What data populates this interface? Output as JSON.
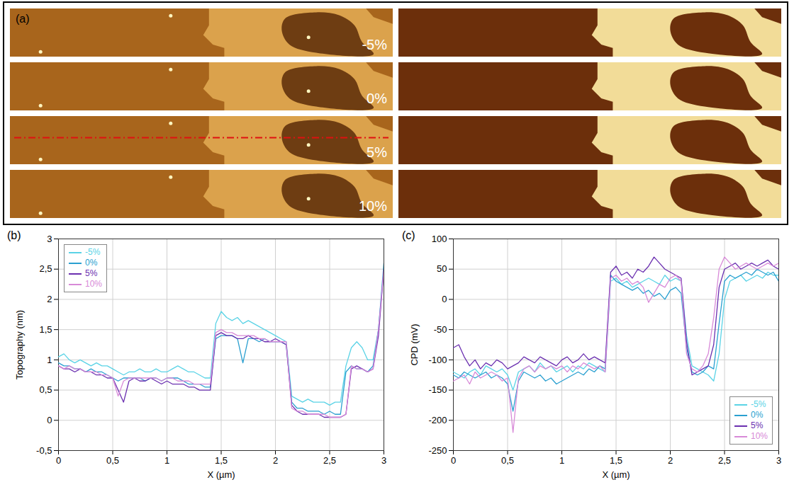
{
  "panel_a": {
    "label": "(a)",
    "image_labels": [
      "-5%",
      "0%",
      "5%",
      "10%"
    ]
  },
  "chart_data": [
    {
      "type": "line",
      "panel_label": "(b)",
      "x_label": "X (µm)",
      "y_label": "Topography (nm)",
      "xlim": [
        0,
        3
      ],
      "xticks": [
        0,
        {
          "value": 0.5,
          "label": "0,5"
        },
        1,
        {
          "value": 1.5,
          "label": "1,5"
        },
        2,
        {
          "value": 2.5,
          "label": "2,5"
        },
        3
      ],
      "ylim": [
        -0.5,
        3
      ],
      "yticks": [
        {
          "value": -0.5,
          "label": "-0,5"
        },
        0,
        {
          "value": 0.5,
          "label": "0,5"
        },
        1,
        {
          "value": 1.5,
          "label": "1,5"
        },
        2,
        {
          "value": 2.5,
          "label": "2,5"
        },
        3
      ],
      "grid": true,
      "legend": "top-left",
      "x": [
        0,
        0.05,
        0.1,
        0.15,
        0.2,
        0.25,
        0.3,
        0.35,
        0.4,
        0.45,
        0.5,
        0.55,
        0.6,
        0.65,
        0.7,
        0.75,
        0.8,
        0.85,
        0.9,
        0.95,
        1,
        1.05,
        1.1,
        1.15,
        1.2,
        1.25,
        1.3,
        1.35,
        1.4,
        1.45,
        1.5,
        1.55,
        1.6,
        1.65,
        1.7,
        1.75,
        1.8,
        1.85,
        1.9,
        1.95,
        2,
        2.05,
        2.1,
        2.15,
        2.2,
        2.25,
        2.3,
        2.35,
        2.4,
        2.45,
        2.5,
        2.55,
        2.6,
        2.65,
        2.7,
        2.75,
        2.8,
        2.85,
        2.9,
        2.95,
        3
      ],
      "series": [
        {
          "name": "-5%",
          "color": "#5ad3e6",
          "values": [
            1.05,
            1.1,
            1.0,
            0.95,
            1.0,
            0.95,
            0.9,
            0.95,
            0.9,
            0.9,
            0.85,
            0.8,
            0.75,
            0.8,
            0.8,
            0.85,
            0.8,
            0.8,
            0.85,
            0.8,
            0.8,
            0.85,
            0.9,
            0.85,
            0.8,
            0.8,
            0.75,
            0.7,
            0.7,
            1.6,
            1.8,
            1.7,
            1.65,
            1.7,
            1.6,
            1.65,
            1.6,
            1.55,
            1.5,
            1.45,
            1.4,
            1.35,
            1.3,
            0.4,
            0.35,
            0.3,
            0.35,
            0.3,
            0.3,
            0.3,
            0.25,
            0.3,
            0.3,
            0.9,
            1.2,
            1.3,
            1.2,
            1.0,
            1.0,
            1.5,
            2.5
          ]
        },
        {
          "name": "0%",
          "color": "#2a9fd0",
          "values": [
            0.95,
            0.9,
            0.9,
            0.85,
            0.85,
            0.8,
            0.85,
            0.8,
            0.8,
            0.75,
            0.7,
            0.65,
            0.7,
            0.7,
            0.7,
            0.7,
            0.65,
            0.7,
            0.7,
            0.65,
            0.7,
            0.7,
            0.7,
            0.65,
            0.6,
            0.6,
            0.6,
            0.55,
            0.55,
            1.35,
            1.4,
            1.4,
            1.4,
            1.35,
            0.95,
            1.35,
            1.35,
            1.3,
            1.35,
            1.3,
            1.3,
            1.3,
            1.25,
            0.3,
            0.2,
            0.2,
            0.15,
            0.15,
            0.15,
            0.1,
            0.15,
            0.1,
            0.1,
            0.8,
            0.9,
            0.85,
            0.85,
            0.8,
            0.9,
            1.5,
            2.6
          ]
        },
        {
          "name": "5%",
          "color": "#6b30b0",
          "values": [
            0.9,
            0.85,
            0.85,
            0.8,
            0.85,
            0.8,
            0.8,
            0.75,
            0.75,
            0.7,
            0.7,
            0.5,
            0.3,
            0.65,
            0.7,
            0.65,
            0.65,
            0.7,
            0.65,
            0.6,
            0.65,
            0.6,
            0.6,
            0.6,
            0.55,
            0.55,
            0.5,
            0.5,
            0.5,
            1.4,
            1.45,
            1.4,
            1.4,
            1.35,
            1.35,
            1.4,
            1.35,
            1.35,
            1.3,
            1.3,
            1.35,
            1.3,
            1.25,
            0.25,
            0.15,
            0.1,
            0.1,
            0.1,
            0.1,
            0.05,
            0.05,
            0.05,
            0.05,
            0.1,
            0.85,
            0.9,
            0.85,
            0.8,
            0.85,
            1.4,
            2.5
          ]
        },
        {
          "name": "10%",
          "color": "#d88ad8",
          "values": [
            0.9,
            0.85,
            0.9,
            0.85,
            0.85,
            0.8,
            0.8,
            0.8,
            0.75,
            0.75,
            0.7,
            0.4,
            0.65,
            0.7,
            0.7,
            0.7,
            0.7,
            0.7,
            0.7,
            0.65,
            0.7,
            0.7,
            0.65,
            0.65,
            0.65,
            0.6,
            0.6,
            0.6,
            0.6,
            1.45,
            1.5,
            1.45,
            1.45,
            1.4,
            1.4,
            1.4,
            1.4,
            1.35,
            1.35,
            1.3,
            1.3,
            1.3,
            1.3,
            0.2,
            0.15,
            0.15,
            0.1,
            0.1,
            0.1,
            0.1,
            0.05,
            0.05,
            0.05,
            0.1,
            0.9,
            0.85,
            0.85,
            0.8,
            0.85,
            1.5,
            2.5
          ]
        }
      ]
    },
    {
      "type": "line",
      "panel_label": "(c)",
      "x_label": "X (µm)",
      "y_label": "CPD (mV)",
      "xlim": [
        0,
        3
      ],
      "xticks": [
        0,
        {
          "value": 0.5,
          "label": "0,5"
        },
        1,
        {
          "value": 1.5,
          "label": "1,5"
        },
        2,
        {
          "value": 2.5,
          "label": "2,5"
        },
        3
      ],
      "ylim": [
        -250,
        100
      ],
      "yticks": [
        -250,
        -200,
        -150,
        -100,
        -50,
        0,
        50,
        100
      ],
      "grid": true,
      "legend": "bottom-right",
      "x": [
        0,
        0.05,
        0.1,
        0.15,
        0.2,
        0.25,
        0.3,
        0.35,
        0.4,
        0.45,
        0.5,
        0.55,
        0.6,
        0.65,
        0.7,
        0.75,
        0.8,
        0.85,
        0.9,
        0.95,
        1,
        1.05,
        1.1,
        1.15,
        1.2,
        1.25,
        1.3,
        1.35,
        1.4,
        1.45,
        1.5,
        1.55,
        1.6,
        1.65,
        1.7,
        1.75,
        1.8,
        1.85,
        1.9,
        1.95,
        2,
        2.05,
        2.1,
        2.15,
        2.2,
        2.25,
        2.3,
        2.35,
        2.4,
        2.45,
        2.5,
        2.55,
        2.6,
        2.65,
        2.7,
        2.75,
        2.8,
        2.85,
        2.9,
        2.95,
        3
      ],
      "series": [
        {
          "name": "-5%",
          "color": "#5ad3e6",
          "values": [
            -120,
            -125,
            -130,
            -120,
            -115,
            -125,
            -110,
            -115,
            -120,
            -115,
            -125,
            -150,
            -120,
            -115,
            -110,
            -120,
            -105,
            -115,
            -110,
            -120,
            -115,
            -110,
            -120,
            -110,
            -115,
            -105,
            -110,
            -115,
            -120,
            30,
            35,
            25,
            30,
            20,
            25,
            30,
            35,
            30,
            25,
            40,
            30,
            35,
            30,
            -60,
            -110,
            -115,
            -120,
            -125,
            -135,
            -90,
            0,
            30,
            35,
            40,
            30,
            35,
            40,
            35,
            45,
            40,
            40
          ]
        },
        {
          "name": "0%",
          "color": "#2a9fd0",
          "values": [
            -125,
            -130,
            -120,
            -125,
            -130,
            -125,
            -120,
            -130,
            -125,
            -130,
            -140,
            -185,
            -135,
            -120,
            -125,
            -130,
            -125,
            -135,
            -130,
            -140,
            -135,
            -130,
            -125,
            -120,
            -125,
            -115,
            -120,
            -110,
            -115,
            40,
            30,
            25,
            20,
            15,
            20,
            10,
            15,
            5,
            10,
            0,
            15,
            20,
            10,
            -80,
            -120,
            -125,
            -120,
            -110,
            -115,
            -40,
            30,
            40,
            35,
            40,
            45,
            40,
            50,
            45,
            40,
            45,
            30
          ]
        },
        {
          "name": "5%",
          "color": "#6b30b0",
          "values": [
            -80,
            -75,
            -95,
            -110,
            -100,
            -115,
            -105,
            -110,
            -100,
            -105,
            -115,
            -110,
            -105,
            -95,
            -100,
            -105,
            -95,
            -100,
            -105,
            -110,
            -100,
            -95,
            -105,
            -100,
            -90,
            -100,
            -95,
            -100,
            -105,
            45,
            55,
            40,
            45,
            35,
            50,
            45,
            55,
            70,
            60,
            50,
            45,
            40,
            35,
            -70,
            -125,
            -120,
            -115,
            -110,
            -75,
            20,
            50,
            55,
            60,
            50,
            55,
            60,
            55,
            60,
            65,
            55,
            50
          ]
        },
        {
          "name": "10%",
          "color": "#d88ad8",
          "values": [
            -135,
            -130,
            -125,
            -140,
            -120,
            -130,
            -125,
            -120,
            -125,
            -135,
            -130,
            -220,
            -130,
            -115,
            -110,
            -120,
            -110,
            -115,
            -110,
            -115,
            -110,
            -120,
            -110,
            -115,
            -105,
            -110,
            -115,
            -110,
            -120,
            35,
            40,
            30,
            35,
            25,
            30,
            20,
            -5,
            10,
            25,
            20,
            35,
            40,
            30,
            -90,
            -115,
            -120,
            -110,
            -90,
            -30,
            50,
            70,
            60,
            50,
            55,
            60,
            55,
            50,
            55,
            60,
            55,
            60
          ]
        }
      ]
    }
  ]
}
